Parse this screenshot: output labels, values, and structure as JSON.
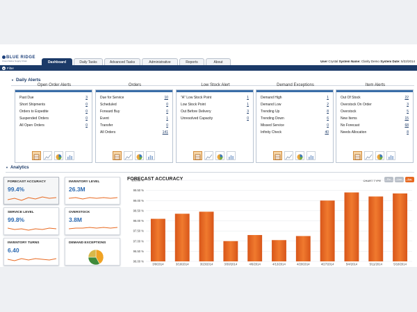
{
  "header": {
    "logo_line1": "BLUE RIDGE",
    "logo_line2": "Cloud-Native Supply Chain",
    "tabs": [
      {
        "label": "Dashboard",
        "active": true
      },
      {
        "label": "Daily Tasks",
        "active": false
      },
      {
        "label": "Advanced Tasks",
        "active": false
      },
      {
        "label": "Administrative",
        "active": false
      },
      {
        "label": "Reports",
        "active": false
      },
      {
        "label": "About",
        "active": false
      }
    ],
    "user_label": "User",
    "user_value": "Crystal",
    "system_name_label": "System Name:",
    "system_name_value": "Clarity Demo",
    "system_date_label": "System Date:",
    "system_date_value": "5/22/2014",
    "filter_label": "Filter"
  },
  "daily_alerts": {
    "title": "Daily Alerts",
    "panels": [
      {
        "title": "Open Order Alerts",
        "rows": [
          {
            "label": "Past Due",
            "value": "3"
          },
          {
            "label": "Short Shipments",
            "value": "0"
          },
          {
            "label": "Orders to Expedite",
            "value": "0"
          },
          {
            "label": "Suspended Orders",
            "value": "0"
          },
          {
            "label": "All Open Orders",
            "value": "0"
          }
        ]
      },
      {
        "title": "Orders",
        "rows": [
          {
            "label": "Due for Service",
            "value": "10"
          },
          {
            "label": "Scheduled",
            "value": "0"
          },
          {
            "label": "Forward Buy",
            "value": "0"
          },
          {
            "label": "Event",
            "value": "1"
          },
          {
            "label": "Transfer",
            "value": "0"
          },
          {
            "label": "All Orders",
            "value": "141"
          }
        ]
      },
      {
        "title": "Low Stock Alert",
        "rows": [
          {
            "label": "\"A\" Low Stock Point",
            "value": "1"
          },
          {
            "label": "Low Stock Point",
            "value": "1"
          },
          {
            "label": "Out Before Delivery",
            "value": "3"
          },
          {
            "label": "Unresolved Capacity",
            "value": "0"
          }
        ]
      },
      {
        "title": "Demand Exceptions",
        "rows": [
          {
            "label": "Demand High",
            "value": "1"
          },
          {
            "label": "Demand Low",
            "value": "2"
          },
          {
            "label": "Trending Up",
            "value": "8"
          },
          {
            "label": "Trending Down",
            "value": "6"
          },
          {
            "label": "Missed Service",
            "value": "0"
          },
          {
            "label": "Infinity Check",
            "value": "40"
          }
        ]
      },
      {
        "title": "Item Alerts",
        "rows": [
          {
            "label": "Out Of Stock",
            "value": "22"
          },
          {
            "label": "Overstock On Order",
            "value": "3"
          },
          {
            "label": "Overstock",
            "value": "5"
          },
          {
            "label": "New Items",
            "value": "15"
          },
          {
            "label": "No Forecast",
            "value": "68"
          },
          {
            "label": "Needs Allocation",
            "value": "8"
          }
        ]
      }
    ]
  },
  "analytics": {
    "title": "Analytics",
    "kpis": [
      {
        "title": "FORECAST ACCURACY",
        "value": "99.4%"
      },
      {
        "title": "INVENTORY LEVEL",
        "value": "26.3M"
      },
      {
        "title": "SERVICE LEVEL",
        "value": "99.8%"
      },
      {
        "title": "OVERSTOCK",
        "value": "3.8M"
      },
      {
        "title": "INVENTORY TURNS",
        "value": "6.40"
      },
      {
        "title": "DEMAND EXCEPTIONS",
        "value": ""
      }
    ],
    "chart_type_label": "CHART TYPE",
    "chart_type_buttons": [
      "Pie",
      "Line",
      "Bar"
    ],
    "colors": {
      "bar": "#f07a2e",
      "bar_dark": "#d8561a",
      "accent": "#2c69b0",
      "navy": "#1b3a68"
    }
  },
  "chart_data": {
    "type": "bar",
    "title": "FORECAST ACCURACY",
    "categories": [
      "3/9/2014",
      "3/16/2014",
      "3/23/2014",
      "3/30/2014",
      "4/6/2014",
      "4/13/2014",
      "4/20/2014",
      "4/27/2014",
      "5/4/2014",
      "5/11/2014",
      "5/18/2014"
    ],
    "values": [
      98.1,
      98.35,
      98.45,
      97.0,
      97.3,
      97.05,
      97.25,
      99.0,
      99.4,
      99.2,
      99.35
    ],
    "ylim": [
      96.0,
      100.0
    ],
    "yticks": [
      "96.00 %",
      "96.50 %",
      "97.00 %",
      "97.50 %",
      "98.00 %",
      "98.50 %",
      "99.00 %",
      "99.50 %",
      "100.00 %"
    ],
    "grid": true
  },
  "demand_pie": [
    0.42,
    0.33,
    0.25
  ]
}
